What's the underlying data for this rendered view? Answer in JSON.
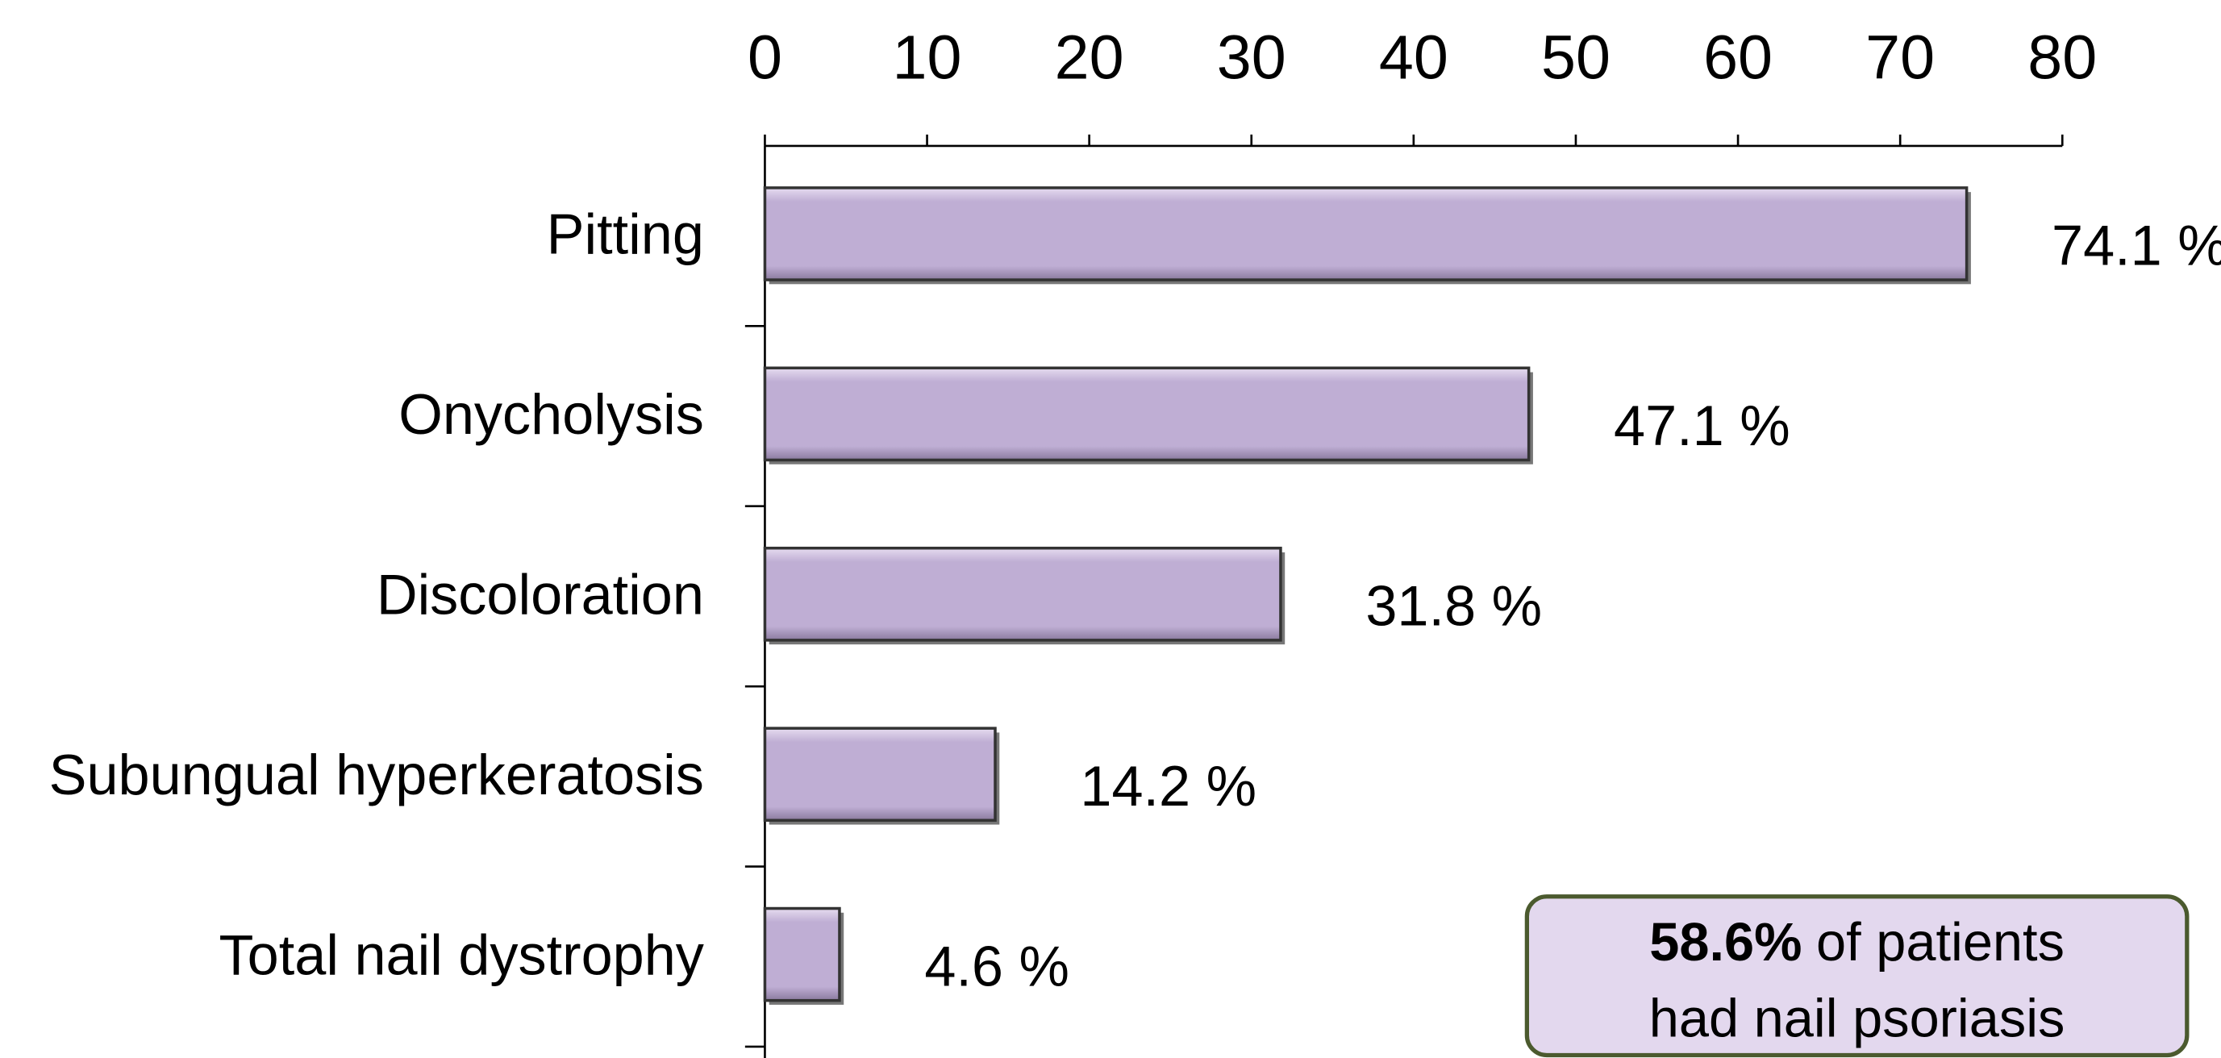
{
  "chart_data": {
    "type": "bar",
    "orientation": "horizontal",
    "categories": [
      "Pitting",
      "Onycholysis",
      "Discoloration",
      "Subungual hyperkeratosis",
      "Total nail dystrophy"
    ],
    "values": [
      74.1,
      47.1,
      31.8,
      14.2,
      4.6
    ],
    "value_labels": [
      "74.1 %",
      "47.1 %",
      "31.8 %",
      "14.2 %",
      "4.6 %"
    ],
    "color": "#bfaed4",
    "xlim": [
      0,
      80
    ],
    "xticks": [
      0,
      10,
      20,
      30,
      40,
      50,
      60,
      70,
      80
    ],
    "annotation": {
      "emphasis": "58.6%",
      "line1": "of patients",
      "line2": "had nail psoriasis"
    }
  }
}
